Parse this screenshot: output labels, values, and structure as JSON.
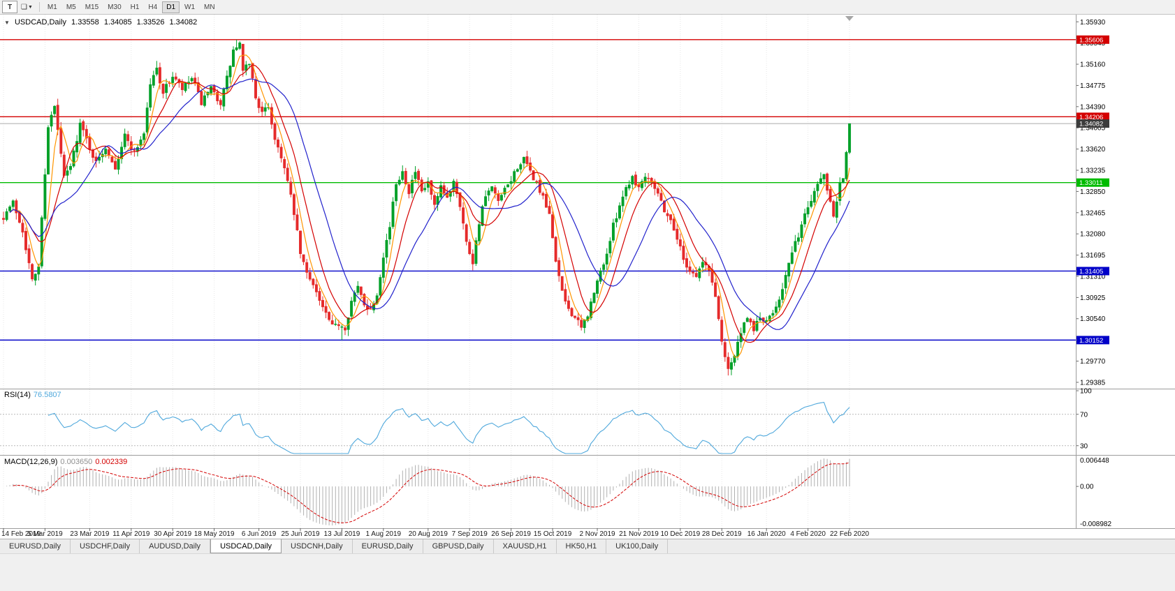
{
  "toolbar": {
    "window_icon_label": "T",
    "shapes_icon": "❏",
    "dropdown_icon": "▼",
    "timeframes": [
      "M1",
      "M5",
      "M15",
      "M30",
      "H1",
      "H4",
      "D1",
      "W1",
      "MN"
    ],
    "active_timeframe": "D1"
  },
  "tabs": {
    "items": [
      {
        "label": "EURUSD,Daily",
        "active": false
      },
      {
        "label": "USDCHF,Daily",
        "active": false
      },
      {
        "label": "AUDUSD,Daily",
        "active": false
      },
      {
        "label": "USDCAD,Daily",
        "active": true
      },
      {
        "label": "USDCNH,Daily",
        "active": false
      },
      {
        "label": "EURUSD,Daily",
        "active": false
      },
      {
        "label": "GBPUSD,Daily",
        "active": false
      },
      {
        "label": "XAUUSD,H1",
        "active": false
      },
      {
        "label": "HK50,H1",
        "active": false
      },
      {
        "label": "UK100,Daily",
        "active": false
      }
    ]
  },
  "chart_data": {
    "type": "candlestick",
    "symbol_label": "USDCAD,Daily",
    "collapse_icon": "▼",
    "visible_ohlc": {
      "open": "1.33558",
      "high": "1.34085",
      "low": "1.33526",
      "close": "1.34082"
    },
    "seed": 7,
    "candle_count": 266,
    "up_color": "#00A028",
    "down_color": "#E52B2B",
    "price_range": {
      "top": 1.3606,
      "bottom": 1.2927
    },
    "price_axis_labels": [
      "1.35930",
      "1.35545",
      "1.35160",
      "1.34775",
      "1.34390",
      "1.34005",
      "1.33620",
      "1.33235",
      "1.32850",
      "1.32465",
      "1.32080",
      "1.31695",
      "1.31310",
      "1.30925",
      "1.30540",
      "1.30155",
      "1.29770",
      "1.29385"
    ],
    "hlines": [
      {
        "value": 1.35606,
        "label": "1.35606",
        "color": "#D40000"
      },
      {
        "value": 1.34206,
        "label": "1.34206",
        "color": "#D40000"
      },
      {
        "value": 1.33011,
        "label": "1.33011",
        "color": "#00BB00"
      },
      {
        "value": 1.31405,
        "label": "1.31405",
        "color": "#0000C8"
      },
      {
        "value": 1.30152,
        "label": "1.30152",
        "color": "#0000C8"
      }
    ],
    "bid": {
      "value": 1.34082,
      "label": "1.34082",
      "line_color": "#ABABAB",
      "box_color": "#3C3C3C"
    },
    "moving_averages": [
      {
        "period": 5,
        "color": "#FF9500"
      },
      {
        "period": 10,
        "color": "#D40000"
      },
      {
        "period": 20,
        "color": "#2222CC"
      }
    ],
    "date_labels": [
      "14 Feb 2019",
      "5 Mar 2019",
      "23 Mar 2019",
      "11 Apr 2019",
      "30 Apr 2019",
      "18 May 2019",
      "6 Jun 2019",
      "25 Jun 2019",
      "13 Jul 2019",
      "1 Aug 2019",
      "20 Aug 2019",
      "7 Sep 2019",
      "26 Sep 2019",
      "15 Oct 2019",
      "2 Nov 2019",
      "21 Nov 2019",
      "10 Dec 2019",
      "28 Dec 2019",
      "16 Jan 2020",
      "4 Feb 2020",
      "22 Feb 2020"
    ],
    "trend_anchors": [
      [
        0,
        1.324
      ],
      [
        3,
        1.3265
      ],
      [
        6,
        1.3215
      ],
      [
        9,
        1.3122
      ],
      [
        11,
        1.315
      ],
      [
        14,
        1.3405
      ],
      [
        16,
        1.3438
      ],
      [
        19,
        1.331
      ],
      [
        21,
        1.333
      ],
      [
        24,
        1.3408
      ],
      [
        26,
        1.338
      ],
      [
        29,
        1.3336
      ],
      [
        32,
        1.3366
      ],
      [
        35,
        1.333
      ],
      [
        38,
        1.3386
      ],
      [
        41,
        1.3356
      ],
      [
        44,
        1.3392
      ],
      [
        46,
        1.348
      ],
      [
        48,
        1.3508
      ],
      [
        50,
        1.3465
      ],
      [
        53,
        1.3494
      ],
      [
        56,
        1.347
      ],
      [
        59,
        1.349
      ],
      [
        62,
        1.3446
      ],
      [
        65,
        1.347
      ],
      [
        68,
        1.3446
      ],
      [
        70,
        1.349
      ],
      [
        72,
        1.354
      ],
      [
        74,
        1.3552
      ],
      [
        75,
        1.35
      ],
      [
        77,
        1.352
      ],
      [
        79,
        1.3456
      ],
      [
        81,
        1.3426
      ],
      [
        83,
        1.344
      ],
      [
        85,
        1.338
      ],
      [
        87,
        1.335
      ],
      [
        89,
        1.3302
      ],
      [
        91,
        1.3246
      ],
      [
        93,
        1.3172
      ],
      [
        95,
        1.3136
      ],
      [
        97,
        1.312
      ],
      [
        99,
        1.3086
      ],
      [
        101,
        1.3062
      ],
      [
        103,
        1.3038
      ],
      [
        105,
        1.3045
      ],
      [
        107,
        1.3038
      ],
      [
        109,
        1.3086
      ],
      [
        111,
        1.311
      ],
      [
        113,
        1.3082
      ],
      [
        115,
        1.307
      ],
      [
        117,
        1.31
      ],
      [
        119,
        1.317
      ],
      [
        121,
        1.3222
      ],
      [
        123,
        1.33
      ],
      [
        125,
        1.3322
      ],
      [
        127,
        1.3286
      ],
      [
        129,
        1.332
      ],
      [
        131,
        1.3282
      ],
      [
        133,
        1.33
      ],
      [
        135,
        1.3256
      ],
      [
        137,
        1.329
      ],
      [
        139,
        1.3272
      ],
      [
        141,
        1.3306
      ],
      [
        143,
        1.3262
      ],
      [
        145,
        1.3192
      ],
      [
        147,
        1.3158
      ],
      [
        149,
        1.323
      ],
      [
        151,
        1.3276
      ],
      [
        153,
        1.329
      ],
      [
        155,
        1.3266
      ],
      [
        157,
        1.3286
      ],
      [
        159,
        1.3306
      ],
      [
        161,
        1.333
      ],
      [
        163,
        1.3342
      ],
      [
        165,
        1.332
      ],
      [
        167,
        1.33
      ],
      [
        169,
        1.3272
      ],
      [
        171,
        1.324
      ],
      [
        173,
        1.3162
      ],
      [
        175,
        1.31
      ],
      [
        177,
        1.3072
      ],
      [
        179,
        1.3056
      ],
      [
        181,
        1.3036
      ],
      [
        183,
        1.3062
      ],
      [
        185,
        1.31
      ],
      [
        187,
        1.314
      ],
      [
        189,
        1.3172
      ],
      [
        191,
        1.3222
      ],
      [
        193,
        1.3262
      ],
      [
        195,
        1.3292
      ],
      [
        197,
        1.3312
      ],
      [
        199,
        1.3292
      ],
      [
        201,
        1.3316
      ],
      [
        203,
        1.3306
      ],
      [
        205,
        1.3282
      ],
      [
        207,
        1.3252
      ],
      [
        209,
        1.3232
      ],
      [
        211,
        1.3202
      ],
      [
        213,
        1.3162
      ],
      [
        215,
        1.3142
      ],
      [
        217,
        1.3132
      ],
      [
        219,
        1.3156
      ],
      [
        221,
        1.3142
      ],
      [
        223,
        1.3096
      ],
      [
        225,
        1.3012
      ],
      [
        227,
        1.2966
      ],
      [
        229,
        1.2986
      ],
      [
        231,
        1.303
      ],
      [
        233,
        1.3052
      ],
      [
        235,
        1.3036
      ],
      [
        237,
        1.3056
      ],
      [
        239,
        1.3046
      ],
      [
        241,
        1.3066
      ],
      [
        243,
        1.3092
      ],
      [
        245,
        1.3132
      ],
      [
        247,
        1.3172
      ],
      [
        249,
        1.3206
      ],
      [
        251,
        1.3242
      ],
      [
        253,
        1.3272
      ],
      [
        255,
        1.3302
      ],
      [
        257,
        1.3316
      ],
      [
        258,
        1.3292
      ],
      [
        259,
        1.3272
      ],
      [
        260,
        1.3242
      ],
      [
        261,
        1.3272
      ],
      [
        262,
        1.3302
      ],
      [
        263,
        1.3312
      ],
      [
        264,
        1.3356
      ],
      [
        265,
        1.34082
      ]
    ],
    "overrides": [
      {
        "i": 48,
        "high": 1.3522
      },
      {
        "i": 73,
        "high": 1.35606
      },
      {
        "i": 106,
        "low": 1.30152
      },
      {
        "i": 227,
        "low": 1.2951
      },
      {
        "i": 264,
        "close": 1.3356
      },
      {
        "i": 265,
        "open": 1.33558,
        "high": 1.34085,
        "low": 1.33526,
        "close": 1.34082
      }
    ],
    "rsi": {
      "name": "RSI(14)",
      "value_text": "76.5807",
      "period": 14,
      "levels": [
        70,
        30
      ],
      "axis_labels": [
        "100",
        "70",
        "30"
      ],
      "color": "#4FA8DC"
    },
    "macd": {
      "name": "MACD(12,26,9)",
      "value_main": "0.003650",
      "value_signal": "0.002339",
      "fast": 12,
      "slow": 26,
      "signal": 9,
      "axis_top": "0.006448",
      "axis_zero": "0.00",
      "axis_bottom": "-0.008982",
      "hist_color": "#B0B0B0",
      "signal_color": "#D40000",
      "main_value_color": "#8F8F8F",
      "signal_value_color": "#D40000"
    }
  }
}
